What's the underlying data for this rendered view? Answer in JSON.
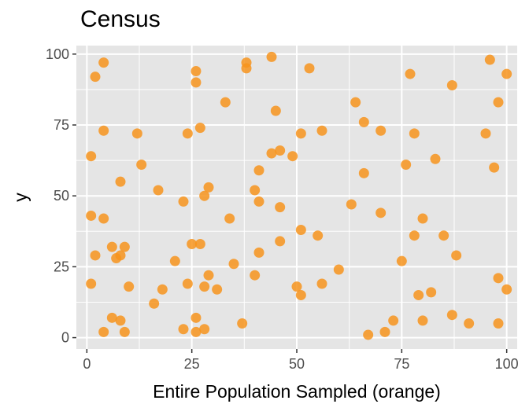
{
  "chart_data": {
    "type": "scatter",
    "title": "Census",
    "xlabel": "Entire Population Sampled (orange)",
    "ylabel": "y",
    "xlim": [
      -2.5,
      102.5
    ],
    "ylim": [
      -4,
      103
    ],
    "x_ticks": [
      0,
      25,
      50,
      75,
      100
    ],
    "y_ticks": [
      0,
      25,
      50,
      75,
      100
    ],
    "x_tick_labels": [
      "0",
      "25",
      "50",
      "75",
      "100"
    ],
    "y_tick_labels": [
      "0",
      "25",
      "50",
      "75",
      "100"
    ],
    "grid": true,
    "point_color": "#f7941d",
    "panel_color": "#e5e5e5",
    "grid_color": "#ffffff",
    "series": [
      {
        "points": [
          [
            1,
            64
          ],
          [
            1,
            43
          ],
          [
            1,
            19
          ],
          [
            2,
            92
          ],
          [
            2,
            29
          ],
          [
            4,
            97
          ],
          [
            4,
            73
          ],
          [
            4,
            42
          ],
          [
            4,
            2
          ],
          [
            6,
            32
          ],
          [
            6,
            7
          ],
          [
            7,
            28
          ],
          [
            8,
            29
          ],
          [
            8,
            55
          ],
          [
            8,
            6
          ],
          [
            9,
            32
          ],
          [
            9,
            2
          ],
          [
            10,
            18
          ],
          [
            12,
            72
          ],
          [
            13,
            61
          ],
          [
            16,
            12
          ],
          [
            17,
            52
          ],
          [
            18,
            17
          ],
          [
            21,
            27
          ],
          [
            23,
            48
          ],
          [
            23,
            3
          ],
          [
            24,
            72
          ],
          [
            24,
            19
          ],
          [
            25,
            33
          ],
          [
            26,
            94
          ],
          [
            26,
            90
          ],
          [
            26,
            7
          ],
          [
            26,
            2
          ],
          [
            27,
            74
          ],
          [
            27,
            33
          ],
          [
            28,
            50
          ],
          [
            28,
            18
          ],
          [
            28,
            3
          ],
          [
            29,
            53
          ],
          [
            29,
            22
          ],
          [
            31,
            17
          ],
          [
            33,
            83
          ],
          [
            34,
            42
          ],
          [
            35,
            26
          ],
          [
            37,
            5
          ],
          [
            38,
            97
          ],
          [
            38,
            95
          ],
          [
            40,
            52
          ],
          [
            40,
            22
          ],
          [
            41,
            59
          ],
          [
            41,
            48
          ],
          [
            41,
            30
          ],
          [
            44,
            99
          ],
          [
            44,
            65
          ],
          [
            45,
            80
          ],
          [
            46,
            66
          ],
          [
            46,
            46
          ],
          [
            46,
            34
          ],
          [
            49,
            64
          ],
          [
            50,
            18
          ],
          [
            51,
            72
          ],
          [
            51,
            38
          ],
          [
            51,
            15
          ],
          [
            53,
            95
          ],
          [
            55,
            36
          ],
          [
            56,
            73
          ],
          [
            56,
            19
          ],
          [
            60,
            24
          ],
          [
            63,
            47
          ],
          [
            64,
            83
          ],
          [
            66,
            76
          ],
          [
            66,
            58
          ],
          [
            67,
            1
          ],
          [
            70,
            73
          ],
          [
            70,
            44
          ],
          [
            71,
            2
          ],
          [
            73,
            6
          ],
          [
            75,
            27
          ],
          [
            76,
            61
          ],
          [
            77,
            93
          ],
          [
            78,
            72
          ],
          [
            78,
            36
          ],
          [
            79,
            15
          ],
          [
            80,
            42
          ],
          [
            80,
            6
          ],
          [
            82,
            16
          ],
          [
            83,
            63
          ],
          [
            85,
            36
          ],
          [
            87,
            89
          ],
          [
            87,
            8
          ],
          [
            88,
            29
          ],
          [
            91,
            5
          ],
          [
            95,
            72
          ],
          [
            96,
            98
          ],
          [
            97,
            60
          ],
          [
            98,
            83
          ],
          [
            98,
            21
          ],
          [
            98,
            5
          ],
          [
            100,
            93
          ],
          [
            100,
            17
          ]
        ]
      }
    ]
  }
}
